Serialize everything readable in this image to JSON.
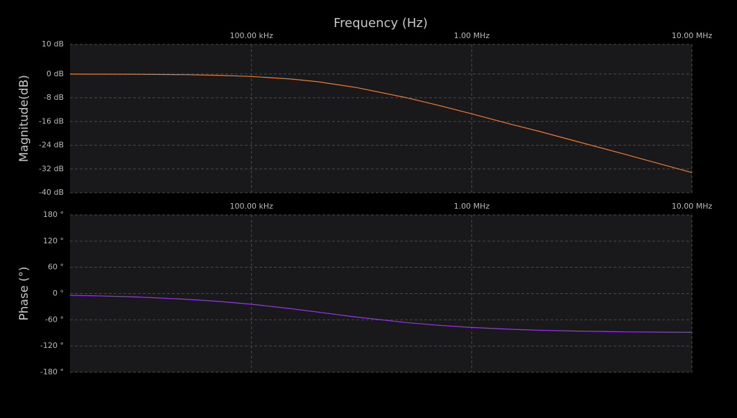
{
  "chart_data": [
    {
      "type": "line",
      "title": "Frequency (Hz)",
      "y_label": "Magnitude(dB)",
      "x": [
        15000,
        20000,
        30000,
        50000,
        70000,
        100000,
        150000,
        200000,
        300000,
        500000,
        700000,
        1000000,
        1500000,
        2000000,
        3000000,
        5000000,
        7000000,
        10000000
      ],
      "values": [
        -0.02,
        -0.04,
        -0.08,
        -0.22,
        -0.42,
        -0.82,
        -1.65,
        -2.6,
        -4.56,
        -7.9,
        -10.5,
        -13.4,
        -16.9,
        -19.2,
        -22.7,
        -27.1,
        -30.1,
        -33.2
      ],
      "color": "#f07d2a",
      "xscale": "log",
      "grid": true,
      "xlim": [
        15000,
        10000000
      ],
      "xticks": [
        {
          "value": 100000,
          "label": "100.00 kHz"
        },
        {
          "value": 1000000,
          "label": "1.00 MHz"
        },
        {
          "value": 10000000,
          "label": "10.00 MHz"
        }
      ],
      "ylim": [
        -40,
        10
      ],
      "yticks": [
        {
          "value": 10,
          "label": "10 dB"
        },
        {
          "value": 0,
          "label": "0 dB"
        },
        {
          "value": -8,
          "label": "-8 dB"
        },
        {
          "value": -16,
          "label": "-16 dB"
        },
        {
          "value": -24,
          "label": "-24 dB"
        },
        {
          "value": -32,
          "label": "-32 dB"
        },
        {
          "value": -40,
          "label": "-40 dB"
        }
      ]
    },
    {
      "type": "line",
      "y_label": "Phase (°)",
      "x": [
        15000,
        20000,
        30000,
        50000,
        70000,
        100000,
        150000,
        200000,
        300000,
        500000,
        700000,
        1000000,
        1500000,
        2000000,
        3000000,
        5000000,
        7000000,
        10000000
      ],
      "values": [
        -3.9,
        -5.2,
        -7.8,
        -12.8,
        -17.6,
        -24.5,
        -34.3,
        -42.3,
        -53.7,
        -66.2,
        -72.5,
        -77.6,
        -81.7,
        -83.7,
        -85.8,
        -87.5,
        -88.2,
        -88.7
      ],
      "color": "#9b35f0",
      "xscale": "log",
      "grid": true,
      "xlim": [
        15000,
        10000000
      ],
      "xticks": [
        {
          "value": 100000,
          "label": "100.00 kHz"
        },
        {
          "value": 1000000,
          "label": "1.00 MHz"
        },
        {
          "value": 10000000,
          "label": "10.00 MHz"
        }
      ],
      "ylim": [
        -180,
        180
      ],
      "yticks": [
        {
          "value": 180,
          "label": "180 °"
        },
        {
          "value": 120,
          "label": "120 °"
        },
        {
          "value": 60,
          "label": "60 °"
        },
        {
          "value": 0,
          "label": "0 °"
        },
        {
          "value": -60,
          "label": "-60 °"
        },
        {
          "value": -120,
          "label": "-120 °"
        },
        {
          "value": -180,
          "label": "-180 °"
        }
      ]
    }
  ]
}
